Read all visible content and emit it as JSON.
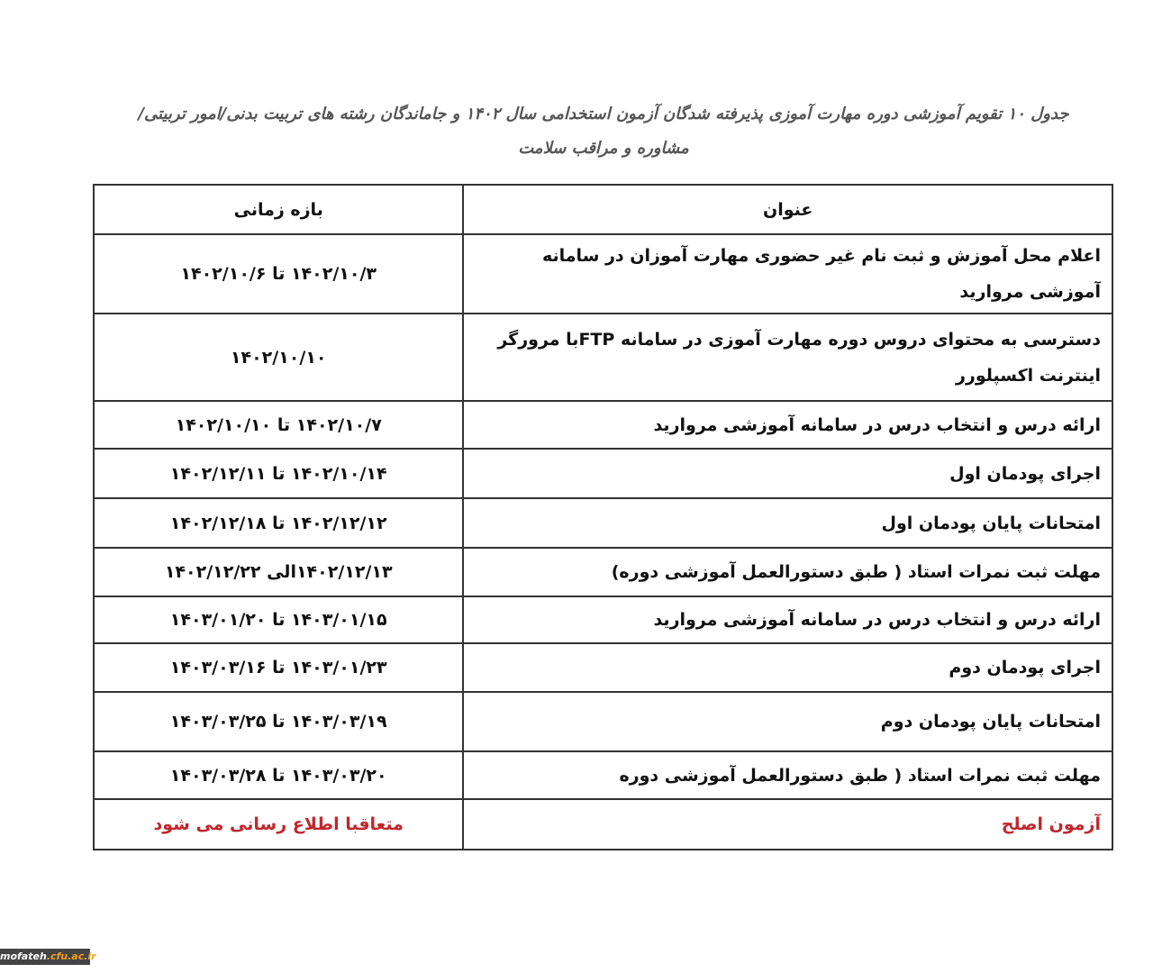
{
  "title": "جدول ۱۰ تقویم آموزشی دوره مهارت آموزی پذیرفته شدگان آزمون استخدامی سال ۱۴۰۲ و جاماندگان رشته  های تربیت بدنی/امور تربیتی/مشاوره و مراقب سلامت",
  "table": {
    "headers": {
      "title": "عنوان",
      "period": "بازه زمانی"
    },
    "rows": [
      {
        "title": "اعلام محل آموزش و ثبت نام غیر حضوری مهارت آموزان در سامانه آموزشی مروارید",
        "period": "۱۴۰۲/۱۰/۳ تا ۱۴۰۲/۱۰/۶"
      },
      {
        "title": "دسترسی به محتوای دروس دوره مهارت آموزی در سامانه FTPبا مرورگر اینترنت اکسپلورر",
        "period": "۱۴۰۲/۱۰/۱۰"
      },
      {
        "title": "ارائه درس و انتخاب درس در سامانه آموزشی مروارید",
        "period": "۱۴۰۲/۱۰/۷ تا ۱۴۰۲/۱۰/۱۰"
      },
      {
        "title": "اجرای پودمان اول",
        "period": "۱۴۰۲/۱۰/۱۴ تا ۱۴۰۲/۱۲/۱۱"
      },
      {
        "title": "امتحانات پایان پودمان اول",
        "period": "۱۴۰۲/۱۲/۱۲ تا ۱۴۰۲/۱۲/۱۸"
      },
      {
        "title": "مهلت ثبت نمرات استاد ( طبق دستورالعمل آموزشی دوره)",
        "period": "۱۴۰۲/۱۲/۱۳الی ۱۴۰۲/۱۲/۲۲"
      },
      {
        "title": "ارائه درس و انتخاب درس در سامانه آموزشی مروارید",
        "period": "۱۴۰۳/۰۱/۱۵ تا ۱۴۰۳/۰۱/۲۰"
      },
      {
        "title": "اجرای پودمان دوم",
        "period": "۱۴۰۳/۰۱/۲۳ تا ۱۴۰۳/۰۳/۱۶"
      },
      {
        "title": "امتحانات پایان پودمان دوم",
        "period": "۱۴۰۳/۰۳/۱۹ تا ۱۴۰۳/۰۳/۲۵"
      },
      {
        "title": "مهلت ثبت نمرات استاد ( طبق دستورالعمل آموزشی دوره",
        "period": "۱۴۰۳/۰۳/۲۰ تا ۱۴۰۳/۰۳/۲۸"
      },
      {
        "title": "آزمون اصلح",
        "period": "متعاقبا اطلاع رسانی می شود",
        "color": "#c0272d"
      }
    ]
  },
  "watermark": {
    "name": "mofateh",
    "domain": ".cfu.ac.ir"
  }
}
